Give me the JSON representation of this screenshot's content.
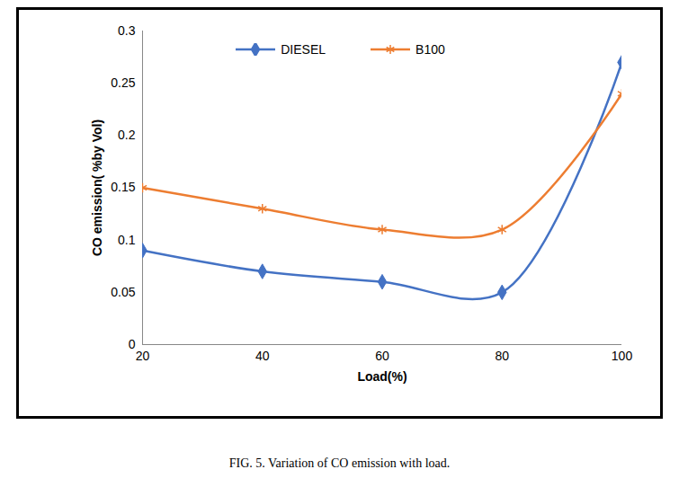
{
  "chart_data": {
    "type": "line",
    "caption": "FIG. 5. Variation of CO emission with load.",
    "x_label": "Load(%)",
    "y_label": "CO emission( %by Vol)",
    "x": [
      20,
      40,
      60,
      80,
      100
    ],
    "series": [
      {
        "name": "DIESEL",
        "color": "#4472c4",
        "marker": "diamond",
        "line_style": "solid",
        "values": [
          0.09,
          0.07,
          0.06,
          0.05,
          0.27
        ]
      },
      {
        "name": "B100",
        "color": "#ed7d31",
        "marker": "asterisk",
        "line_style": "solid",
        "values": [
          0.15,
          0.13,
          0.11,
          0.11,
          0.24
        ]
      }
    ],
    "xlim": [
      20,
      100
    ],
    "xticks": [
      20,
      40,
      60,
      80,
      100
    ],
    "ylim": [
      0,
      0.3
    ],
    "yticks": [
      0,
      0.05,
      0.1,
      0.15,
      0.2,
      0.25,
      0.3
    ],
    "grid": false,
    "legend": "top"
  }
}
